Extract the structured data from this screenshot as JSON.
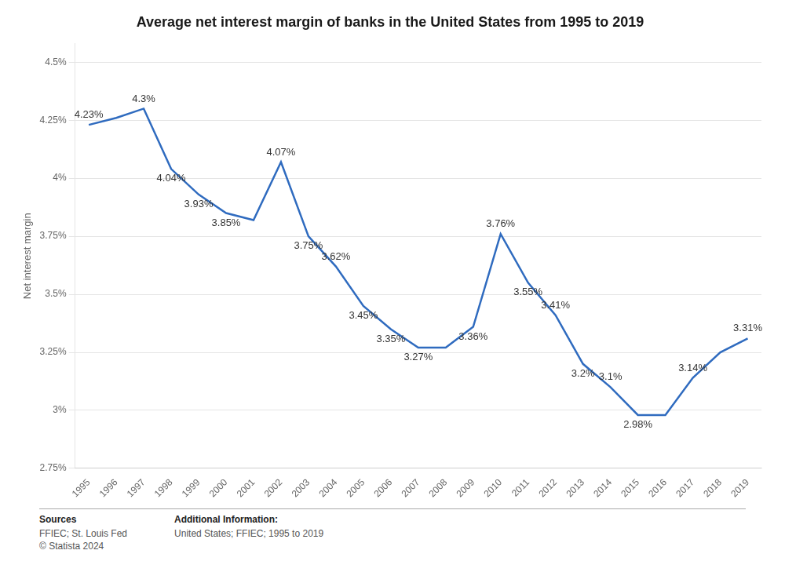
{
  "chart_data": {
    "type": "line",
    "title": "Average net interest margin of banks in the United States from 1995 to 2019",
    "ylabel": "Net interest margin",
    "x": [
      1995,
      1996,
      1997,
      1998,
      1999,
      2000,
      2001,
      2002,
      2003,
      2004,
      2005,
      2006,
      2007,
      2008,
      2009,
      2010,
      2011,
      2012,
      2013,
      2014,
      2015,
      2016,
      2017,
      2018,
      2019
    ],
    "values": [
      4.23,
      4.26,
      4.3,
      4.04,
      3.93,
      3.85,
      3.82,
      4.07,
      3.75,
      3.62,
      3.45,
      3.35,
      3.27,
      3.27,
      3.36,
      3.76,
      3.55,
      3.41,
      3.2,
      3.1,
      2.98,
      2.98,
      3.14,
      3.25,
      3.31
    ],
    "color": "#2f6bbf",
    "xlim": [
      1994.5,
      2019.5
    ],
    "xticks": [
      1995,
      1996,
      1997,
      1998,
      1999,
      2000,
      2001,
      2002,
      2003,
      2004,
      2005,
      2006,
      2007,
      2008,
      2009,
      2010,
      2011,
      2012,
      2013,
      2014,
      2015,
      2016,
      2017,
      2018,
      2019
    ],
    "ylim": [
      2.75,
      4.58
    ],
    "yticks": [
      {
        "value": 2.75,
        "label": "2.75%"
      },
      {
        "value": 3.0,
        "label": "3%"
      },
      {
        "value": 3.25,
        "label": "3.25%"
      },
      {
        "value": 3.5,
        "label": "3.5%"
      },
      {
        "value": 3.75,
        "label": "3.75%"
      },
      {
        "value": 4.0,
        "label": "4%"
      },
      {
        "value": 4.25,
        "label": "4.25%"
      },
      {
        "value": 4.5,
        "label": "4.5%"
      }
    ],
    "grid": true,
    "annotations": [
      {
        "x": 1995,
        "y": 4.23,
        "text": "4.23%"
      },
      {
        "x": 1997,
        "y": 4.3,
        "text": "4.3%"
      },
      {
        "x": 1998,
        "y": 4.04,
        "text": "4.04%"
      },
      {
        "x": 1999,
        "y": 3.93,
        "text": "3.93%"
      },
      {
        "x": 2000,
        "y": 3.85,
        "text": "3.85%"
      },
      {
        "x": 2002,
        "y": 4.07,
        "text": "4.07%"
      },
      {
        "x": 2003,
        "y": 3.75,
        "text": "3.75%"
      },
      {
        "x": 2004,
        "y": 3.62,
        "text": "3.62%"
      },
      {
        "x": 2005,
        "y": 3.45,
        "text": "3.45%"
      },
      {
        "x": 2006,
        "y": 3.35,
        "text": "3.35%"
      },
      {
        "x": 2007,
        "y": 3.27,
        "text": "3.27%"
      },
      {
        "x": 2009,
        "y": 3.36,
        "text": "3.36%"
      },
      {
        "x": 2010,
        "y": 3.76,
        "text": "3.76%"
      },
      {
        "x": 2011,
        "y": 3.55,
        "text": "3.55%"
      },
      {
        "x": 2012,
        "y": 3.41,
        "text": "3.41%"
      },
      {
        "x": 2013,
        "y": 3.2,
        "text": "3.2%"
      },
      {
        "x": 2014,
        "y": 3.1,
        "text": "3.1%"
      },
      {
        "x": 2015,
        "y": 2.98,
        "text": "2.98%"
      },
      {
        "x": 2017,
        "y": 3.14,
        "text": "3.14%"
      },
      {
        "x": 2019,
        "y": 3.31,
        "text": "3.31%"
      }
    ],
    "notes": [
      {
        "title": "Sources",
        "text": [
          "FFIEC; St. Louis Fed",
          "© Statista 2024"
        ]
      },
      {
        "title": "Additional Information:",
        "text": [
          "United States; FFIEC; 1995 to 2019"
        ]
      }
    ]
  }
}
